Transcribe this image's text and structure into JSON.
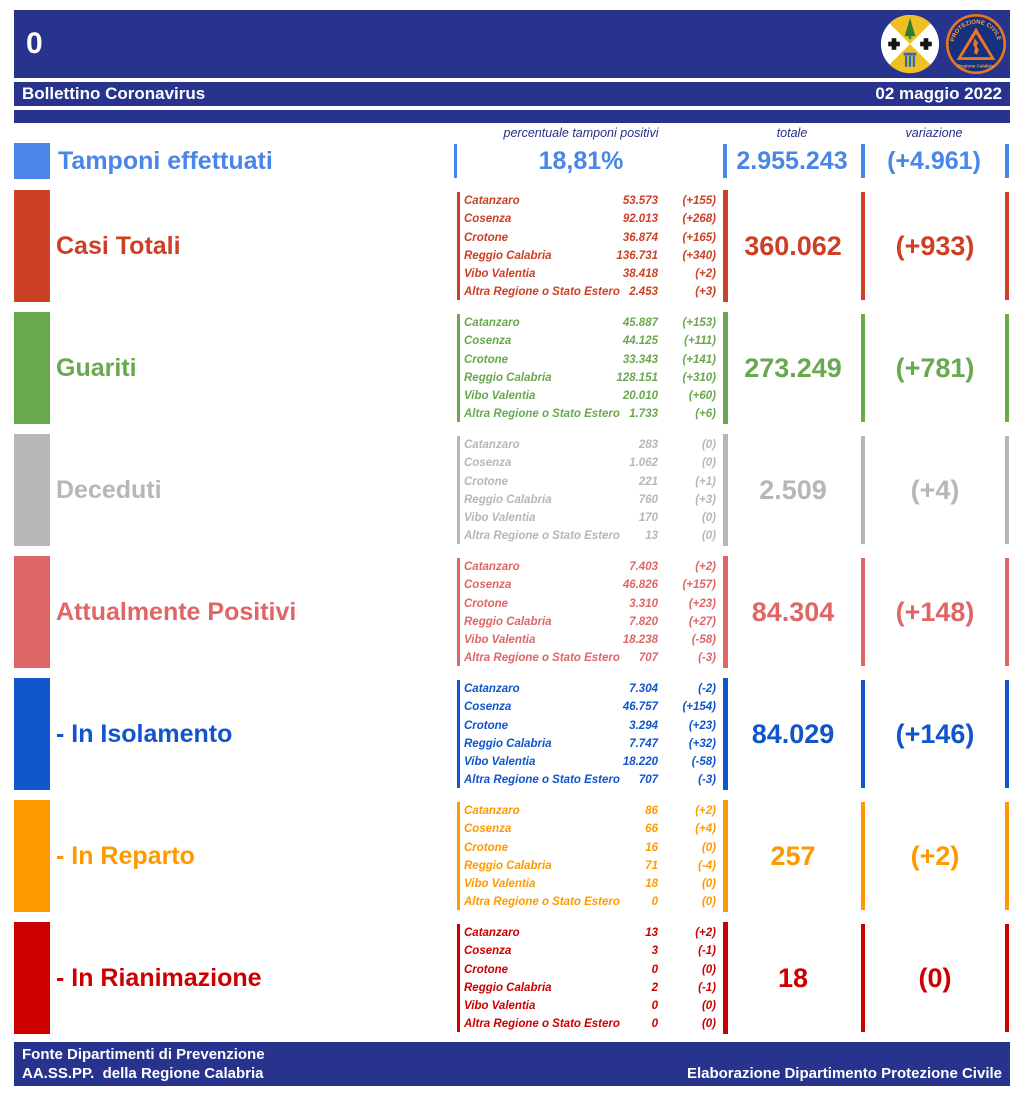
{
  "page": {
    "corner_number": "0",
    "title": "Bollettino Coronavirus",
    "date": "02 maggio 2022"
  },
  "logos": {
    "calabria": {
      "name": "Stemma Regione Calabria"
    },
    "protezione_civile": {
      "arc_text": "PROTEZIONE CIVILE",
      "bottom_text": "Regione Calabria"
    }
  },
  "columns": {
    "percent": "percentuale tamponi positivi",
    "total": "totale",
    "variation": "variazione"
  },
  "tamponi": {
    "label": "Tamponi effettuati",
    "percent": "18,81%",
    "total": "2.955.243",
    "variation": "(+4.961)",
    "color": "#4a86e8"
  },
  "sections": [
    {
      "label": "Casi Totali",
      "color": "#cc4125",
      "total": "360.062",
      "variation": "(+933)",
      "provinces": [
        {
          "name": "Catanzaro",
          "value": "53.573",
          "variation": "(+155)"
        },
        {
          "name": "Cosenza",
          "value": "92.013",
          "variation": "(+268)"
        },
        {
          "name": "Crotone",
          "value": "36.874",
          "variation": "(+165)"
        },
        {
          "name": "Reggio Calabria",
          "value": "136.731",
          "variation": "(+340)"
        },
        {
          "name": "Vibo Valentia",
          "value": "38.418",
          "variation": "(+2)"
        },
        {
          "name": "Altra Regione o Stato Estero",
          "value": "2.453",
          "variation": "(+3)"
        }
      ]
    },
    {
      "label": "Guariti",
      "color": "#6aa84f",
      "total": "273.249",
      "variation": "(+781)",
      "provinces": [
        {
          "name": "Catanzaro",
          "value": "45.887",
          "variation": "(+153)"
        },
        {
          "name": "Cosenza",
          "value": "44.125",
          "variation": "(+111)"
        },
        {
          "name": "Crotone",
          "value": "33.343",
          "variation": "(+141)"
        },
        {
          "name": "Reggio Calabria",
          "value": "128.151",
          "variation": "(+310)"
        },
        {
          "name": "Vibo Valentia",
          "value": "20.010",
          "variation": "(+60)"
        },
        {
          "name": "Altra Regione o Stato Estero",
          "value": "1.733",
          "variation": "(+6)"
        }
      ]
    },
    {
      "label": "Deceduti",
      "color": "#b7b7b7",
      "total": "2.509",
      "variation": "(+4)",
      "provinces": [
        {
          "name": "Catanzaro",
          "value": "283",
          "variation": "(0)"
        },
        {
          "name": "Cosenza",
          "value": "1.062",
          "variation": "(0)"
        },
        {
          "name": "Crotone",
          "value": "221",
          "variation": "(+1)"
        },
        {
          "name": "Reggio Calabria",
          "value": "760",
          "variation": "(+3)"
        },
        {
          "name": "Vibo Valentia",
          "value": "170",
          "variation": "(0)"
        },
        {
          "name": "Altra Regione o Stato Estero",
          "value": "13",
          "variation": "(0)"
        }
      ]
    },
    {
      "label": "Attualmente Positivi",
      "color": "#e06666",
      "total": "84.304",
      "variation": "(+148)",
      "provinces": [
        {
          "name": "Catanzaro",
          "value": "7.403",
          "variation": "(+2)"
        },
        {
          "name": "Cosenza",
          "value": "46.826",
          "variation": "(+157)"
        },
        {
          "name": "Crotone",
          "value": "3.310",
          "variation": "(+23)"
        },
        {
          "name": "Reggio Calabria",
          "value": "7.820",
          "variation": "(+27)"
        },
        {
          "name": "Vibo Valentia",
          "value": "18.238",
          "variation": "(-58)"
        },
        {
          "name": "Altra Regione o Stato Estero",
          "value": "707",
          "variation": "(-3)"
        }
      ]
    },
    {
      "label": "- In Isolamento",
      "color": "#1155cc",
      "total": "84.029",
      "variation": "(+146)",
      "provinces": [
        {
          "name": "Catanzaro",
          "value": "7.304",
          "variation": "(-2)"
        },
        {
          "name": "Cosenza",
          "value": "46.757",
          "variation": "(+154)"
        },
        {
          "name": "Crotone",
          "value": "3.294",
          "variation": "(+23)"
        },
        {
          "name": "Reggio Calabria",
          "value": "7.747",
          "variation": "(+32)"
        },
        {
          "name": "Vibo Valentia",
          "value": "18.220",
          "variation": "(-58)"
        },
        {
          "name": "Altra Regione o Stato Estero",
          "value": "707",
          "variation": "(-3)"
        }
      ]
    },
    {
      "label": "- In Reparto",
      "color": "#ff9900",
      "total": "257",
      "variation": "(+2)",
      "provinces": [
        {
          "name": "Catanzaro",
          "value": "86",
          "variation": "(+2)"
        },
        {
          "name": "Cosenza",
          "value": "66",
          "variation": "(+4)"
        },
        {
          "name": "Crotone",
          "value": "16",
          "variation": "(0)"
        },
        {
          "name": "Reggio Calabria",
          "value": "71",
          "variation": "(-4)"
        },
        {
          "name": "Vibo Valentia",
          "value": "18",
          "variation": "(0)"
        },
        {
          "name": "Altra Regione o Stato Estero",
          "value": "0",
          "variation": "(0)"
        }
      ]
    },
    {
      "label": "- In Rianimazione",
      "color": "#cc0000",
      "total": "18",
      "variation": "(0)",
      "provinces": [
        {
          "name": "Catanzaro",
          "value": "13",
          "variation": "(+2)"
        },
        {
          "name": "Cosenza",
          "value": "3",
          "variation": "(-1)"
        },
        {
          "name": "Crotone",
          "value": "0",
          "variation": "(0)"
        },
        {
          "name": "Reggio Calabria",
          "value": "2",
          "variation": "(-1)"
        },
        {
          "name": "Vibo Valentia",
          "value": "0",
          "variation": "(0)"
        },
        {
          "name": "Altra Regione o Stato Estero",
          "value": "0",
          "variation": "(0)"
        }
      ]
    }
  ],
  "footer": {
    "line1": "Fonte Dipartimenti di Prevenzione",
    "line2": "AA.SS.PP.  della Regione Calabria",
    "right": "Elaborazione Dipartimento Protezione Civile"
  },
  "colors": {
    "header_navy": "#28338e"
  }
}
